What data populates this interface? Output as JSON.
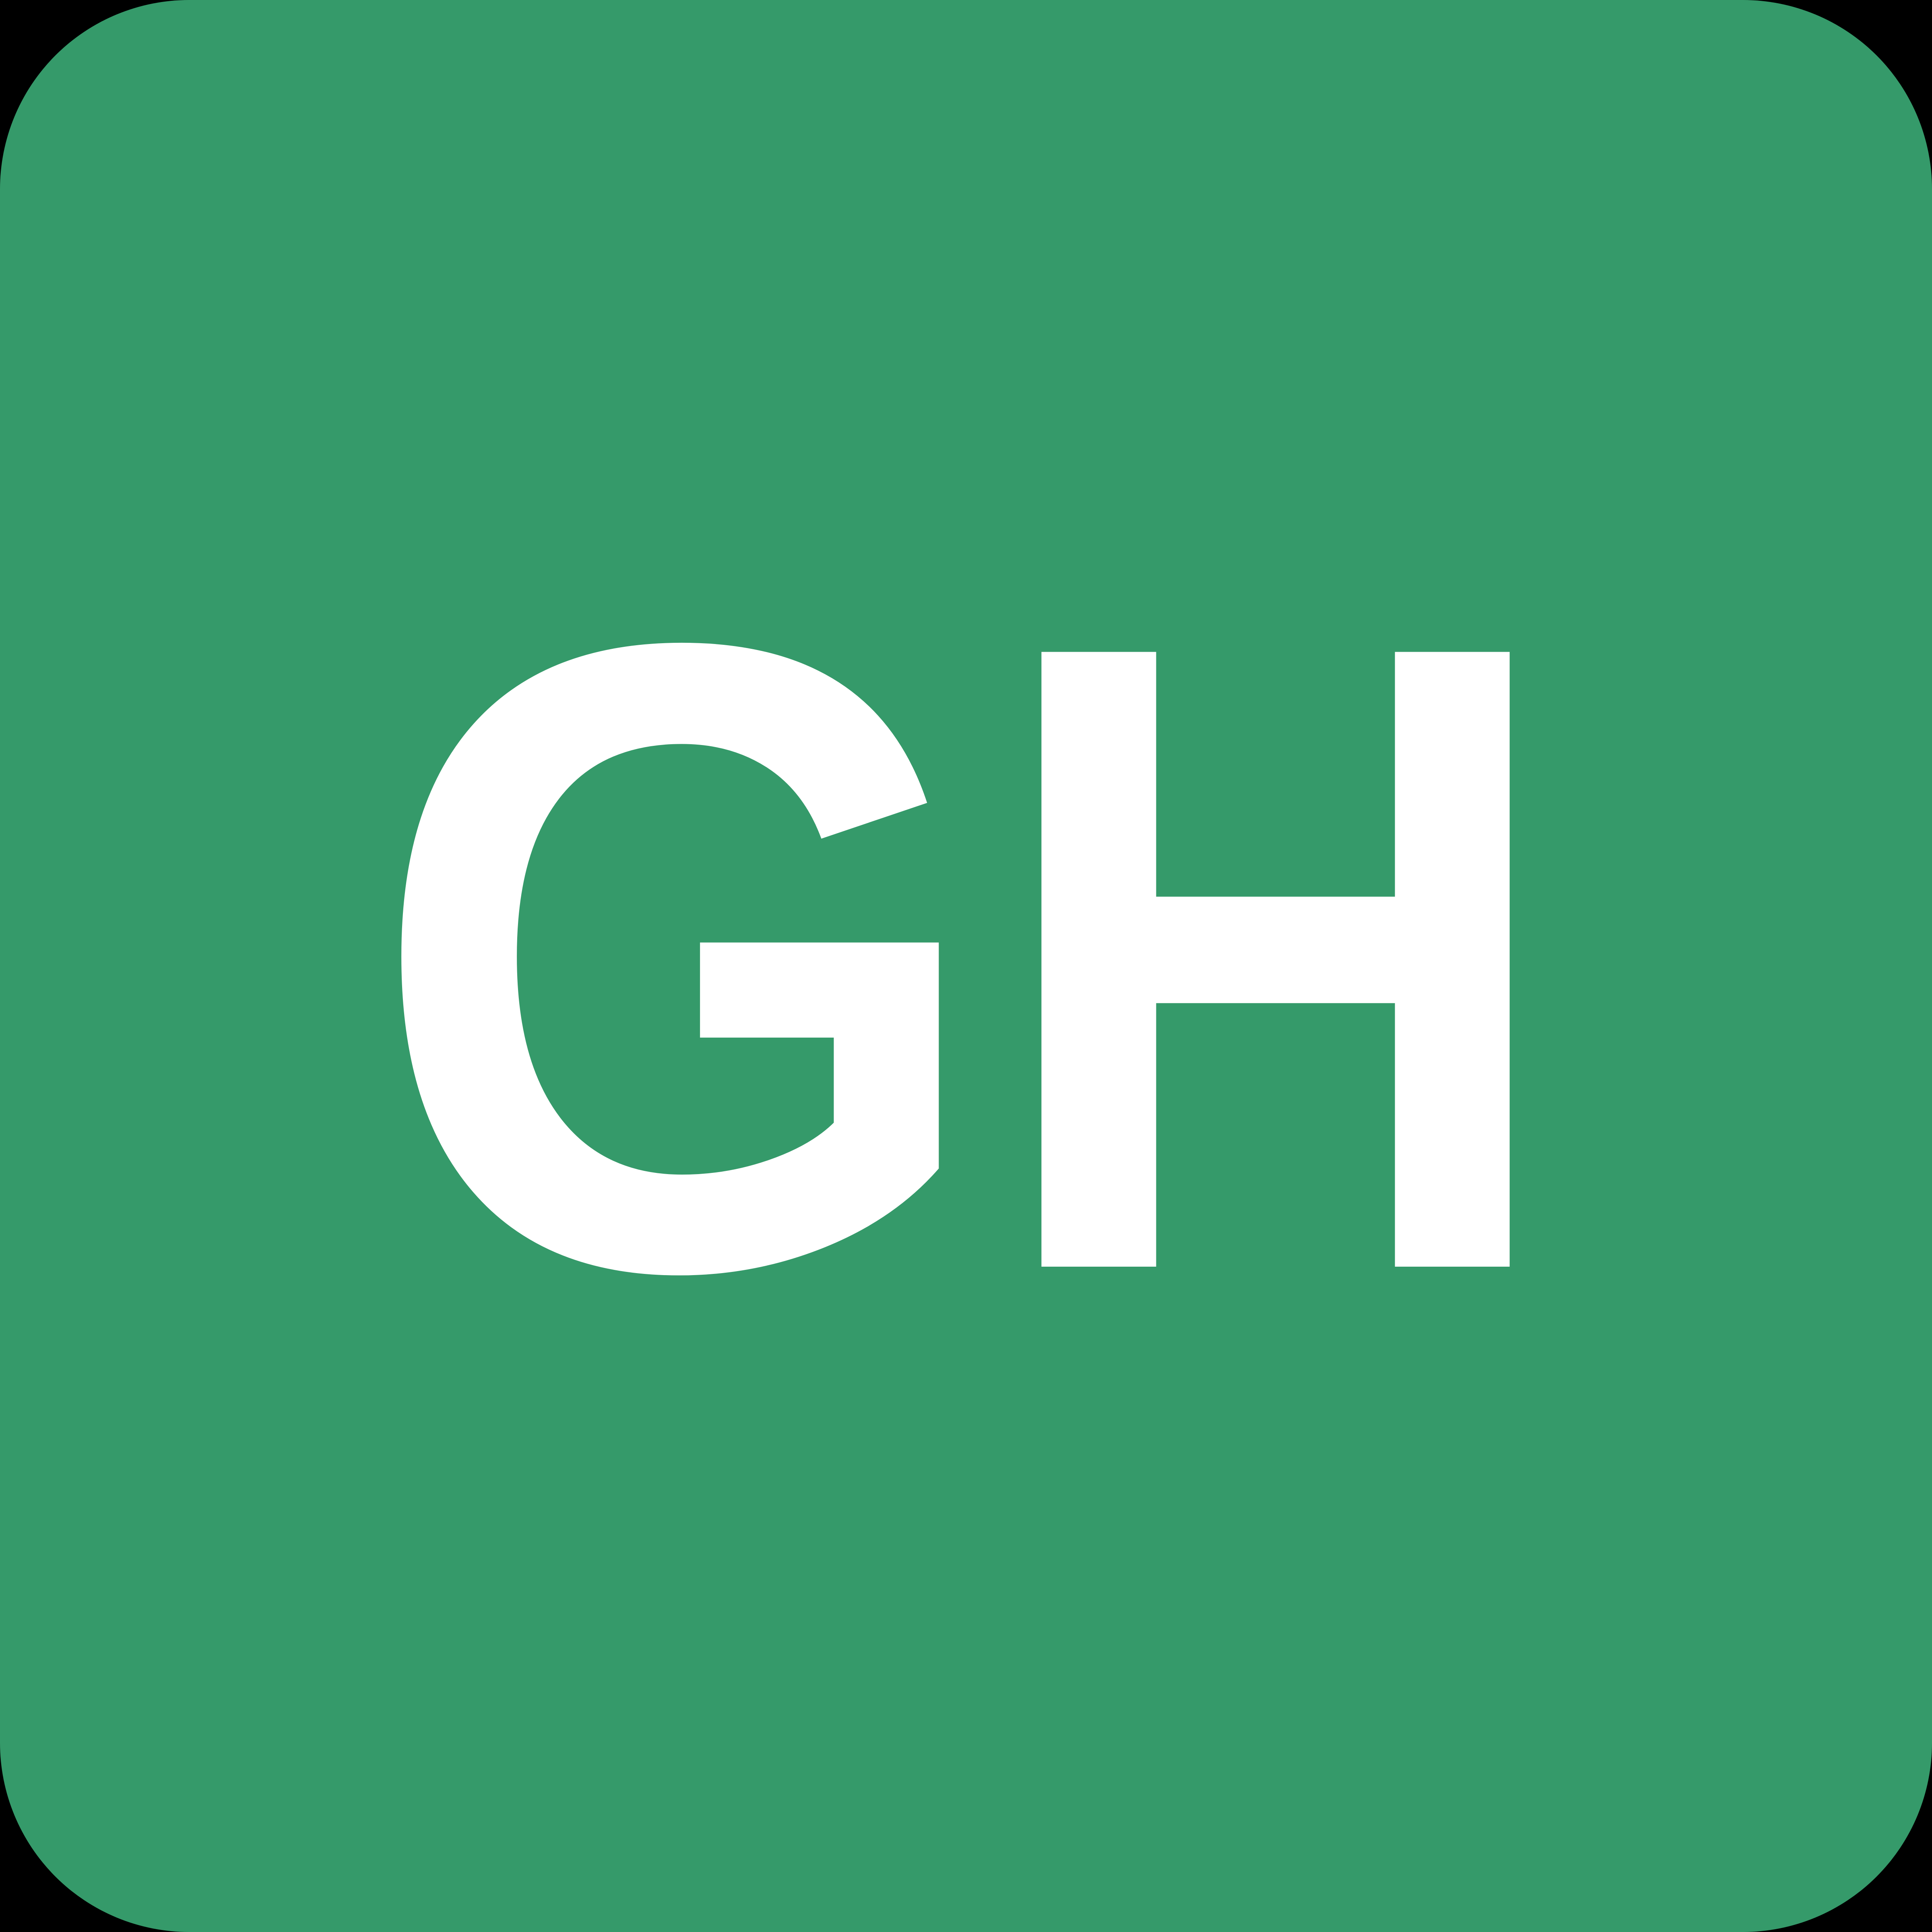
{
  "badge": {
    "text": "GH",
    "background_color": "#359a6a",
    "text_color": "#ffffff",
    "frame_color": "#000000"
  }
}
